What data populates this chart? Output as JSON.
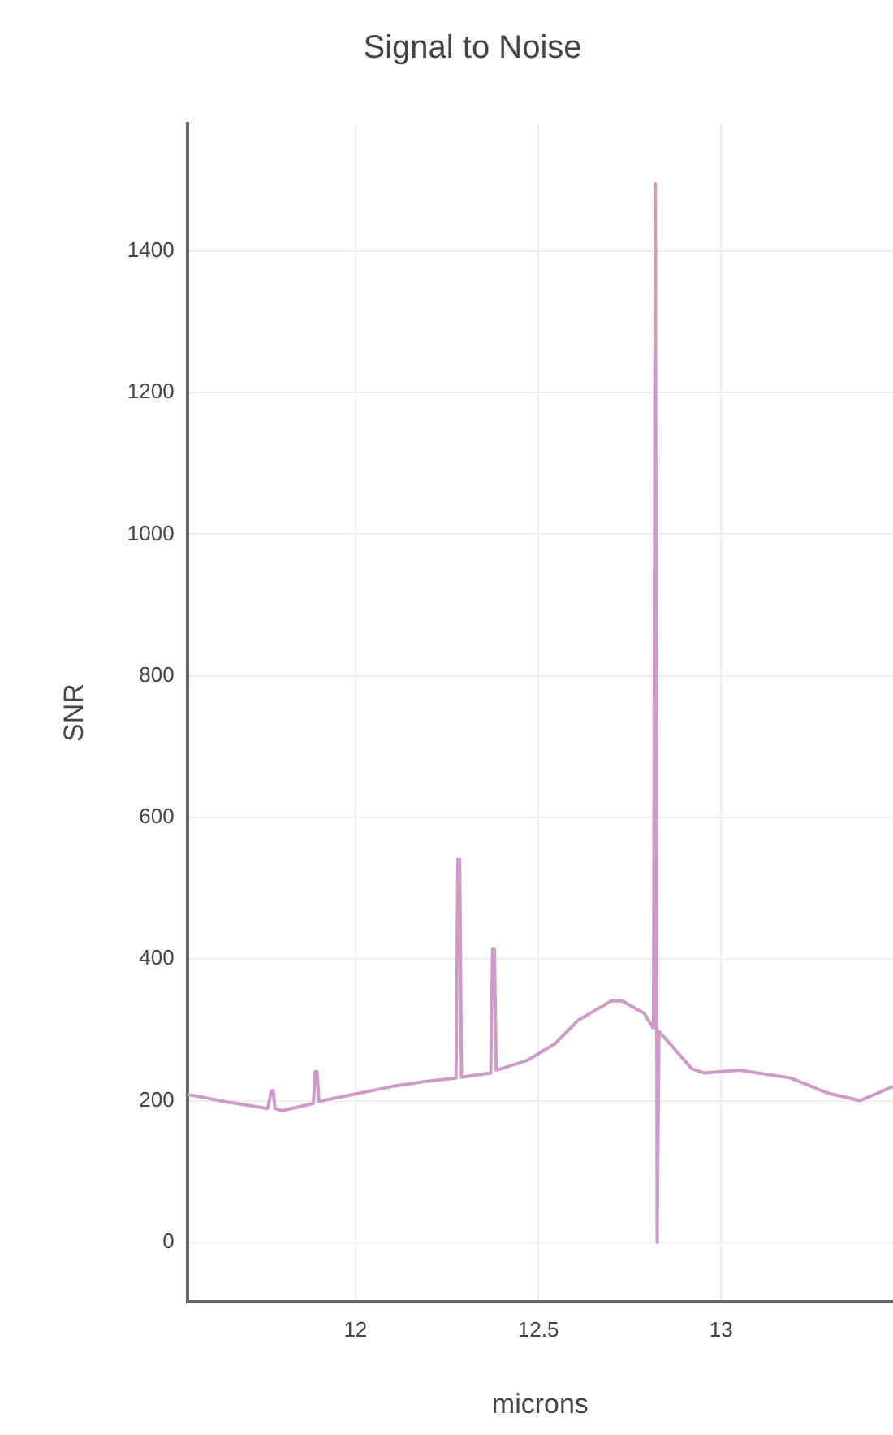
{
  "chart_data": {
    "type": "line",
    "title": "Signal to Noise",
    "xlabel": "microns",
    "ylabel": "SNR",
    "xlim": [
      11.54,
      13.47
    ],
    "ylim": [
      -84,
      1580
    ],
    "xticks": [
      12,
      12.5,
      13
    ],
    "yticks": [
      0,
      200,
      400,
      600,
      800,
      1000,
      1200,
      1400
    ],
    "grid": true,
    "legend": false,
    "marker": "none",
    "line_style": "solid",
    "series": [
      {
        "color": "#d09ac8",
        "x": [
          11.54,
          11.65,
          11.76,
          11.77,
          11.775,
          11.78,
          11.8,
          11.885,
          11.89,
          11.895,
          11.9,
          11.995,
          12.1,
          12.19,
          12.275,
          12.28,
          12.285,
          12.29,
          12.37,
          12.375,
          12.38,
          12.385,
          12.47,
          12.545,
          12.61,
          12.7,
          12.73,
          12.79,
          12.815,
          12.82,
          12.825,
          12.83,
          12.92,
          12.955,
          13.05,
          13.19,
          13.29,
          13.38,
          13.47
        ],
        "values": [
          209,
          198,
          189,
          214,
          214,
          189,
          186,
          196,
          241,
          241,
          199,
          209,
          220,
          227,
          232,
          541,
          541,
          233,
          239,
          414,
          414,
          243,
          257,
          280,
          314,
          341,
          341,
          323,
          302,
          1495,
          0,
          298,
          245,
          239,
          243,
          232,
          211,
          200,
          220
        ]
      }
    ]
  }
}
